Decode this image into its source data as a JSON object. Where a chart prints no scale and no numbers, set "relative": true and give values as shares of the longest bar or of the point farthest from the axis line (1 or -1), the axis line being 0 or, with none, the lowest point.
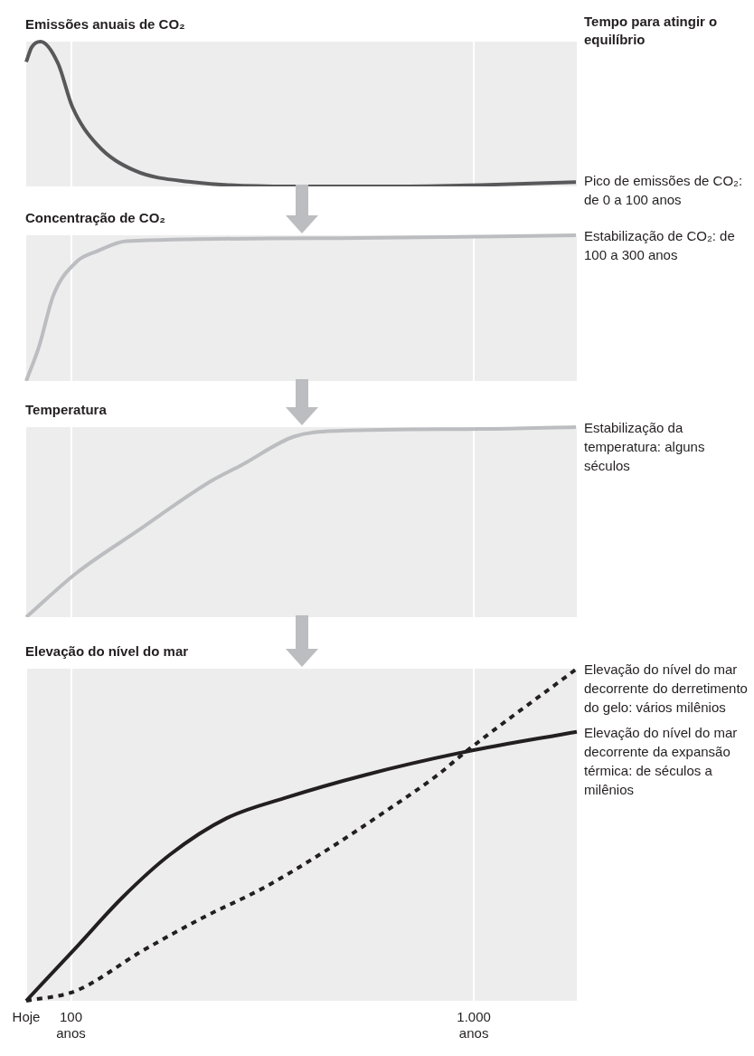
{
  "chart_data": [
    {
      "type": "line",
      "title": "Emissões anuais de CO₂",
      "relative": true,
      "xlim": [
        0,
        1230
      ],
      "xticks": [
        {
          "value": 100,
          "label": null
        },
        {
          "value": 1000,
          "label": null
        }
      ],
      "tick_labels": false,
      "grid": "x",
      "annotations": [
        "Tempo para atingir o equilíbrio",
        "Pico de emissões de CO₂: de 0 a 100 anos"
      ],
      "x": [
        0,
        12,
        32,
        71,
        103,
        158,
        242,
        372,
        588,
        804,
        1018,
        1228
      ],
      "values": [
        0.86,
        0.96,
        1,
        0.85,
        0.55,
        0.29,
        0.11,
        0.03,
        0,
        0,
        0.01,
        0.03
      ],
      "color": "#58585a"
    },
    {
      "type": "line",
      "title": "Concentração de CO₂",
      "relative": true,
      "xlim": [
        0,
        1230
      ],
      "xticks": [
        {
          "value": 100,
          "label": null
        },
        {
          "value": 1000,
          "label": null
        }
      ],
      "tick_labels": false,
      "grid": "x",
      "annotations": [
        "Estabilização de CO₂: de 100 a 300 anos"
      ],
      "x": [
        0,
        28,
        61,
        113,
        158,
        224,
        700,
        1228
      ],
      "values": [
        0,
        0.23,
        0.59,
        0.82,
        0.89,
        0.96,
        0.98,
        1
      ],
      "color": "#bcbdc0"
    },
    {
      "type": "line",
      "title": "Temperatura",
      "relative": true,
      "xlim": [
        0,
        1230
      ],
      "xticks": [
        {
          "value": 100,
          "label": null
        },
        {
          "value": 1000,
          "label": null
        }
      ],
      "tick_labels": false,
      "grid": "x",
      "annotations": [
        "Estabilização da temperatura: alguns séculos"
      ],
      "x": [
        0,
        111,
        265,
        319,
        416,
        481,
        598,
        695,
        1018,
        1228
      ],
      "values": [
        0,
        0.23,
        0.48,
        0.57,
        0.72,
        0.8,
        0.95,
        0.98,
        0.99,
        1
      ],
      "color": "#bcbdc0"
    },
    {
      "type": "line",
      "title": "Elevação do nível do mar",
      "relative": true,
      "xlim": [
        0,
        1230
      ],
      "xticks": [
        {
          "value": 0,
          "label": "Hoje"
        },
        {
          "value": 100,
          "label": "100 anos"
        },
        {
          "value": 1000,
          "label": "1.000 anos"
        }
      ],
      "tick_labels": "x",
      "grid": "x",
      "annotations": [
        "Elevação do nível do mar decorrente do derretimento do gelo: vários milênios",
        "Elevação do nível do mar decorrente da expansão térmica: de séculos a milênios"
      ],
      "series": [
        {
          "color": "#231f20",
          "line_style": "dashed",
          "x": [
            0,
            111,
            259,
            394,
            530,
            667,
            802,
            919,
            982,
            1230
          ],
          "values": [
            0,
            0.03,
            0.15,
            0.25,
            0.34,
            0.45,
            0.57,
            0.68,
            0.75,
            1
          ]
        },
        {
          "color": "#231f20",
          "line_style": "solid",
          "x": [
            0,
            111,
            214,
            321,
            448,
            576,
            757,
            982,
            1230
          ],
          "values": [
            0,
            0.16,
            0.31,
            0.44,
            0.55,
            0.61,
            0.68,
            0.75,
            0.81
          ]
        }
      ]
    }
  ]
}
